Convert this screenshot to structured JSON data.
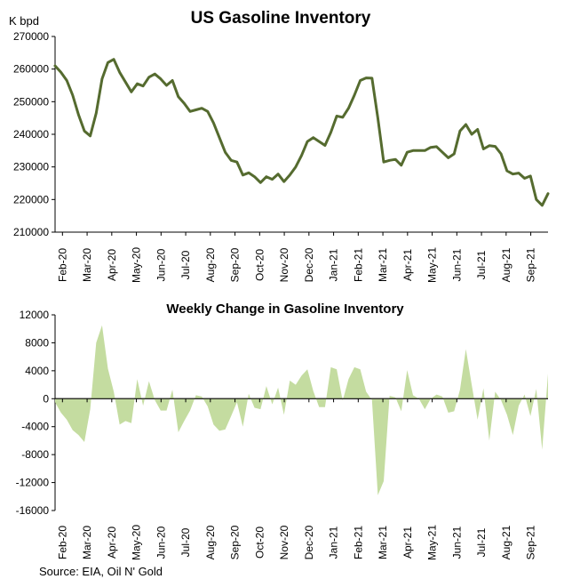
{
  "source": "Source: EIA, Oil N' Gold",
  "chart_data": [
    {
      "type": "line",
      "title": "US Gasoline Inventory",
      "ylabel": "K bpd",
      "ylim": [
        210000,
        270000
      ],
      "y_ticks": [
        210000,
        220000,
        230000,
        240000,
        250000,
        260000,
        270000
      ],
      "x_ticks": [
        "Feb-20",
        "Mar-20",
        "Apr-20",
        "May-20",
        "Jun-20",
        "Jul-20",
        "Aug-20",
        "Sep-20",
        "Oct-20",
        "Nov-20",
        "Dec-20",
        "Jan-21",
        "Feb-21",
        "Mar-21",
        "Apr-21",
        "May-21",
        "Jun-21",
        "Jul-21",
        "Aug-21",
        "Sep-21"
      ],
      "grid": false,
      "legend": "none",
      "color": "#556b2f",
      "series": [
        {
          "values": [
            261000,
            259000,
            256500,
            252000,
            246000,
            241000,
            239500,
            246500,
            257000,
            262000,
            263000,
            259000,
            256000,
            253000,
            255500,
            254800,
            257500,
            258500,
            257000,
            255000,
            256500,
            251500,
            249500,
            247000,
            247500,
            248000,
            247000,
            243500,
            239000,
            234500,
            232000,
            231500,
            227500,
            228200,
            227000,
            225200,
            227000,
            226200,
            227800,
            225500,
            227500,
            230000,
            233500,
            237800,
            239000,
            237800,
            236600,
            240600,
            245600,
            245200,
            248000,
            252000,
            256500,
            257300,
            257200,
            245000,
            231500,
            232000,
            232300,
            230500,
            234500,
            235000,
            235000,
            235000,
            236000,
            236200,
            234500,
            232800,
            234000,
            241000,
            243000,
            240000,
            241500,
            235500,
            236500,
            236300,
            234000,
            228800,
            227800,
            228100,
            226500,
            227200,
            220000,
            218200,
            221800
          ]
        }
      ]
    },
    {
      "type": "area",
      "title": "Weekly Change in Gasoline Inventory",
      "ylim": [
        -16000,
        12000
      ],
      "y_ticks": [
        -16000,
        -12000,
        -8000,
        -4000,
        0,
        4000,
        8000,
        12000
      ],
      "x_ticks": [
        "Feb-20",
        "Mar-20",
        "Apr-20",
        "May-20",
        "Jun-20",
        "Jul-20",
        "Aug-20",
        "Sep-20",
        "Oct-20",
        "Nov-20",
        "Dec-20",
        "Jan-21",
        "Feb-21",
        "Mar-21",
        "Apr-21",
        "May-21",
        "Jun-21",
        "Jul-21",
        "Aug-21",
        "Sep-21"
      ],
      "grid": false,
      "legend": "none",
      "color": "#c4dca0",
      "series": [
        {
          "values": [
            -500,
            -2000,
            -3000,
            -4500,
            -5200,
            -6200,
            -1500,
            8000,
            10500,
            4300,
            1000,
            -3700,
            -3200,
            -3500,
            2800,
            -1000,
            2500,
            -200,
            -1700,
            -1700,
            1300,
            -4800,
            -3200,
            -1700,
            500,
            300,
            -1100,
            -3700,
            -4600,
            -4400,
            -2500,
            -500,
            -4000,
            700,
            -1300,
            -1500,
            1800,
            -800,
            1600,
            -2300,
            2600,
            2000,
            3300,
            4200,
            1100,
            -1200,
            -1200,
            4500,
            4200,
            -300,
            2800,
            4500,
            4200,
            1000,
            -200,
            -13800,
            -11800,
            400,
            200,
            -1800,
            4100,
            500,
            0,
            -1500,
            0,
            600,
            300,
            -2000,
            -1800,
            1300,
            7100,
            2000,
            -3000,
            1500,
            -6000,
            1000,
            -200,
            -2300,
            -5200,
            -1000,
            600,
            -2500,
            1400,
            -7300,
            3600
          ]
        }
      ]
    }
  ]
}
